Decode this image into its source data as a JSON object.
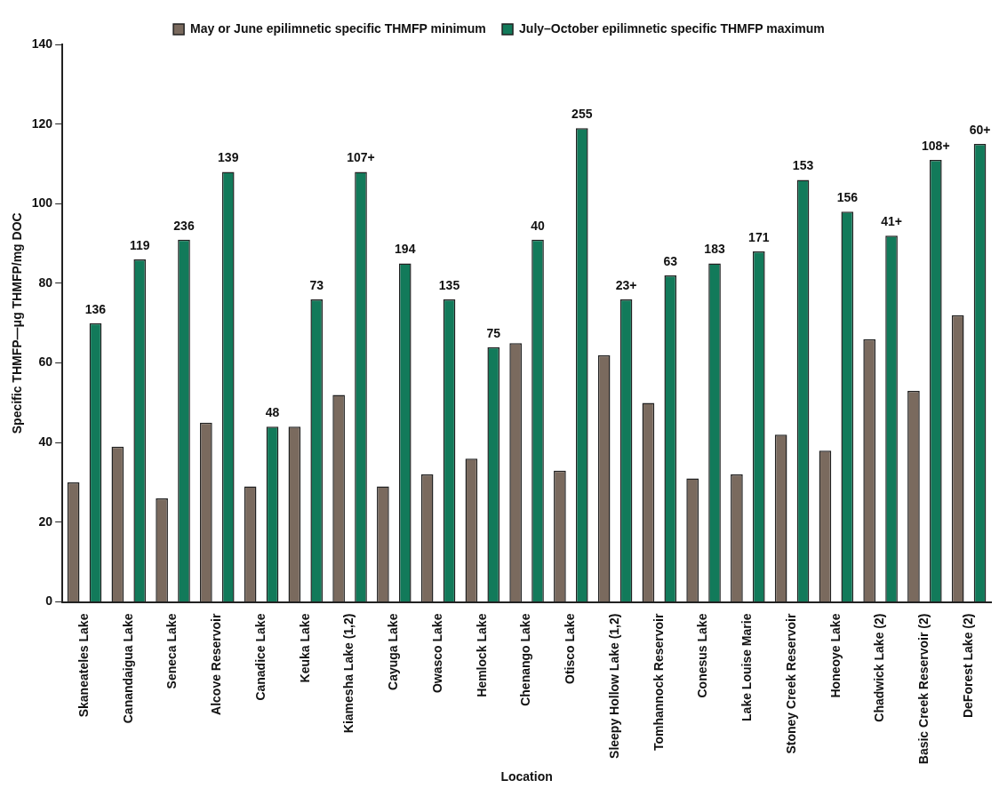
{
  "chart_data": {
    "type": "bar",
    "xlabel": "Location",
    "ylabel": "Specific THMFP—μg THMFP/mg DOC",
    "categories": [
      "Skaneateles Lake",
      "Canandaigua Lake",
      "Seneca Lake",
      "Alcove Reservoir",
      "Canadice Lake",
      "Keuka Lake",
      "Kiamesha Lake (1,2)",
      "Cayuga Lake",
      "Owasco Lake",
      "Hemlock Lake",
      "Chenango Lake",
      "Otisco Lake",
      "Sleepy Hollow Lake (1,2)",
      "Tomhannock Reservoir",
      "Conesus Lake",
      "Lake Louise Marie",
      "Stoney Creek Reservoir",
      "Honeoye Lake",
      "Chadwick Lake (2)",
      "Basic Creek Reservoir (2)",
      "DeForest Lake (2)"
    ],
    "series": [
      {
        "name": "May or June epilimnetic specific THMFP minimum",
        "color": "#7a6a5e",
        "values": [
          30,
          39,
          26,
          45,
          29,
          44,
          52,
          29,
          32,
          36,
          65,
          33,
          62,
          50,
          31,
          32,
          42,
          38,
          66,
          53,
          72
        ]
      },
      {
        "name": "July–October epilimnetic specific THMFP maximum",
        "color": "#127a5a",
        "values": [
          70,
          86,
          91,
          108,
          44,
          76,
          108,
          85,
          76,
          64,
          91,
          119,
          76,
          82,
          85,
          88,
          106,
          98,
          92,
          111,
          115
        ]
      }
    ],
    "ylim": [
      0,
      140
    ],
    "yticks": [
      0,
      20,
      40,
      60,
      80,
      100,
      120,
      140
    ],
    "grid": false,
    "legend": "top",
    "annotations": [
      "136",
      "119",
      "236",
      "139",
      "48",
      "73",
      "107+",
      "194",
      "135",
      "75",
      "40",
      "255",
      "23+",
      "63",
      "183",
      "171",
      "153",
      "156",
      "41+",
      "108+",
      "60+"
    ]
  }
}
